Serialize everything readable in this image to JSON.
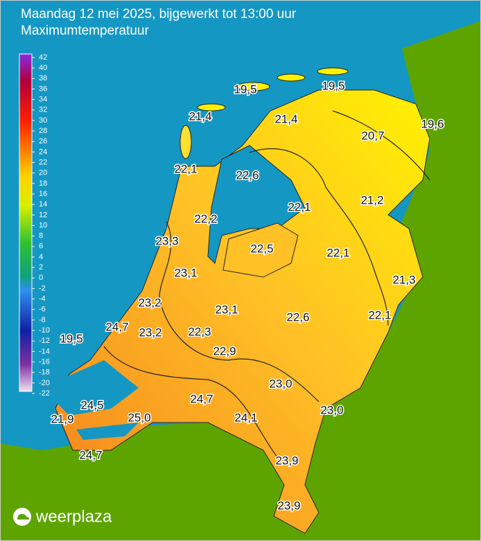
{
  "header": {
    "title": "Maandag 12 mei 2025, bijgewerkt tot 13:00 uur",
    "subtitle": "Maximumtemperatuur"
  },
  "legend": {
    "ticks": [
      42,
      40,
      38,
      36,
      34,
      32,
      30,
      28,
      26,
      24,
      22,
      20,
      18,
      16,
      14,
      12,
      10,
      8,
      6,
      4,
      2,
      0,
      -2,
      -4,
      -6,
      -8,
      -10,
      -12,
      -14,
      -16,
      -18,
      -20,
      -22
    ]
  },
  "stations": [
    "19,5",
    "19,5",
    "21,4",
    "21,4",
    "20,7",
    "19,6",
    "22,1",
    "22,6",
    "22,1",
    "21,2",
    "22,2",
    "23,3",
    "22,5",
    "22,1",
    "21,3",
    "23,1",
    "23,2",
    "23,1",
    "22,6",
    "22,1",
    "24,7",
    "23,2",
    "22,3",
    "22,9",
    "19,5",
    "23,0",
    "23,0",
    "24,7",
    "24,5",
    "25,0",
    "21,9",
    "24,1",
    "24,7",
    "23,9",
    "23,9"
  ],
  "brand": "weerplaza"
}
